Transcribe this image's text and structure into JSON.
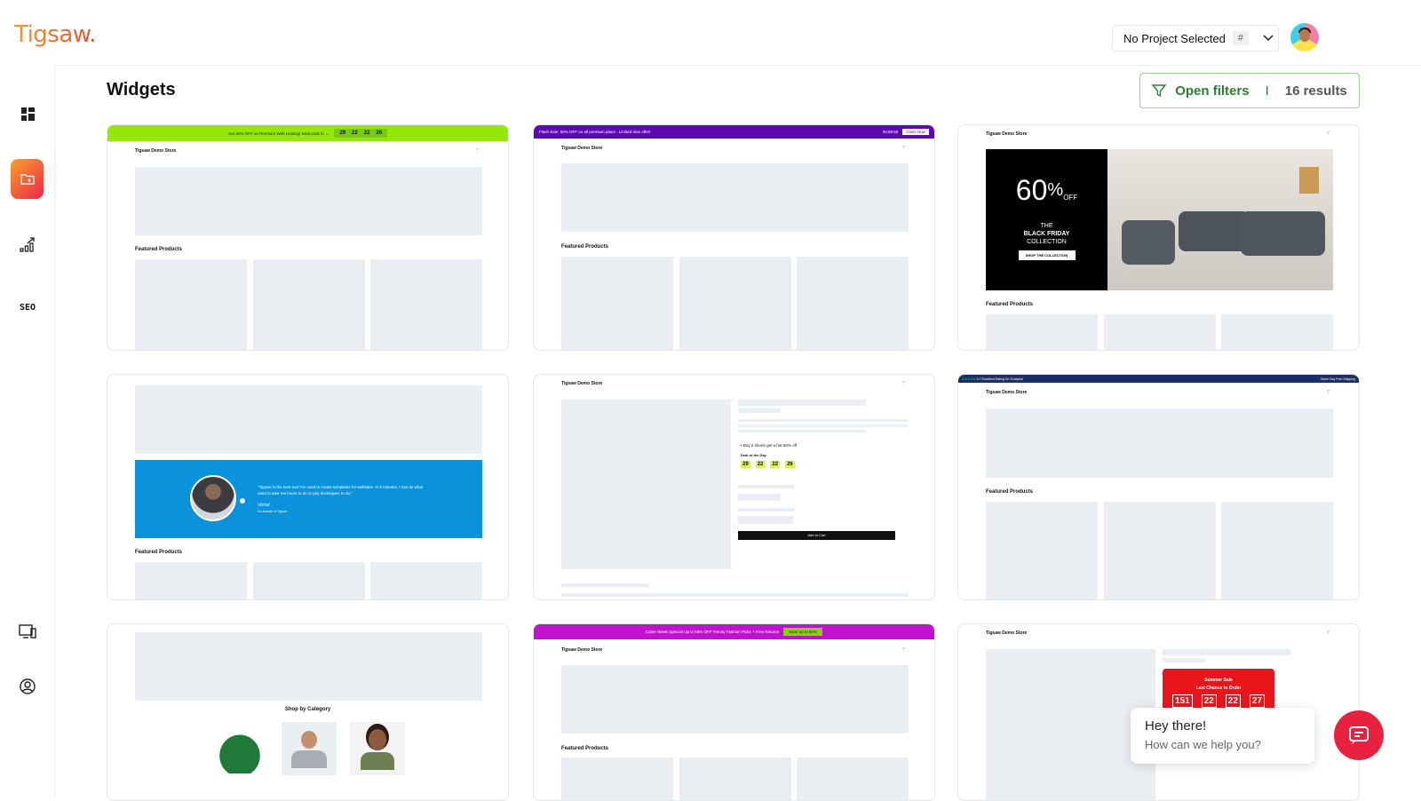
{
  "brand": {
    "logo": "Tigsaw."
  },
  "header": {
    "project_selector": "No Project Selected",
    "project_hash": "#",
    "avatar": "user-avatar"
  },
  "sidebar": {
    "items": [
      {
        "icon": "dashboard-icon"
      },
      {
        "icon": "folder-add-icon",
        "active": true
      },
      {
        "icon": "analytics-icon"
      },
      {
        "label": "SEO"
      },
      {
        "icon": "screens-icon"
      },
      {
        "icon": "user-circle-icon"
      }
    ]
  },
  "page": {
    "title": "Widgets",
    "filters_label": "Open filters",
    "separator": "I",
    "results": "16 results"
  },
  "colors": {
    "accent": "#ee2748",
    "filter_green": "#2e7d32"
  },
  "widgets": {
    "store_name": "Tigsaw Demo Store",
    "featured": "Featured Products",
    "w1": {
      "banner": "Get 60% OFF on Premium Web Hosting! Deal ends in →",
      "countdown": [
        "29",
        "22",
        "22",
        "26"
      ],
      "banner_color": "#96e60a"
    },
    "w2": {
      "banner": "Flash Sale: 50% OFF on all premium plans - Limited time offer!",
      "timer": "00:59:59",
      "cta": "Claim Now",
      "banner_color": "#5b0ab0"
    },
    "w3": {
      "big": "60",
      "pct": "%",
      "off": "OFF",
      "the": "THE",
      "collection_bold": "BLACK FRIDAY",
      "collection": "COLLECTION",
      "cta": "SHOP THE COLLECTION"
    },
    "w4": {
      "quote": "\"Tigsaw is the best tool I've used to create templates for websites. In 5 minutes, I can do what used to take me hours to do or pay developers to do.\"",
      "signature": "Vishal",
      "role": "Co-founder of Tigsaw",
      "color": "#0a92db"
    },
    "w5": {
      "offer": "Buy 2 shorts get a hat 50% off",
      "deal": "Deal of the Day",
      "countdown": [
        "29",
        "22",
        "22",
        "26"
      ],
      "add_to_cart": "Add to Cart"
    },
    "w6": {
      "rating": "4.7 Excellent Rating On Trustpilot",
      "shipping": "Same Day Free Shipping",
      "banner_color": "#1b2f66"
    },
    "w7": {
      "category_title": "Shop by Category"
    },
    "w8": {
      "banner": "Cyber Week Special! Up to 50% OFF Trendy Fashion Picks + Free Returns",
      "cta": "Save up to 50%",
      "banner_color": "#c012d0"
    },
    "w9": {
      "sale": "Summer Sale",
      "subtitle": "Last Chance to Order",
      "countdown": [
        "151",
        "22",
        "22",
        "27"
      ]
    }
  },
  "chat": {
    "greeting": "Hey there!",
    "prompt": "How can we help you?"
  }
}
